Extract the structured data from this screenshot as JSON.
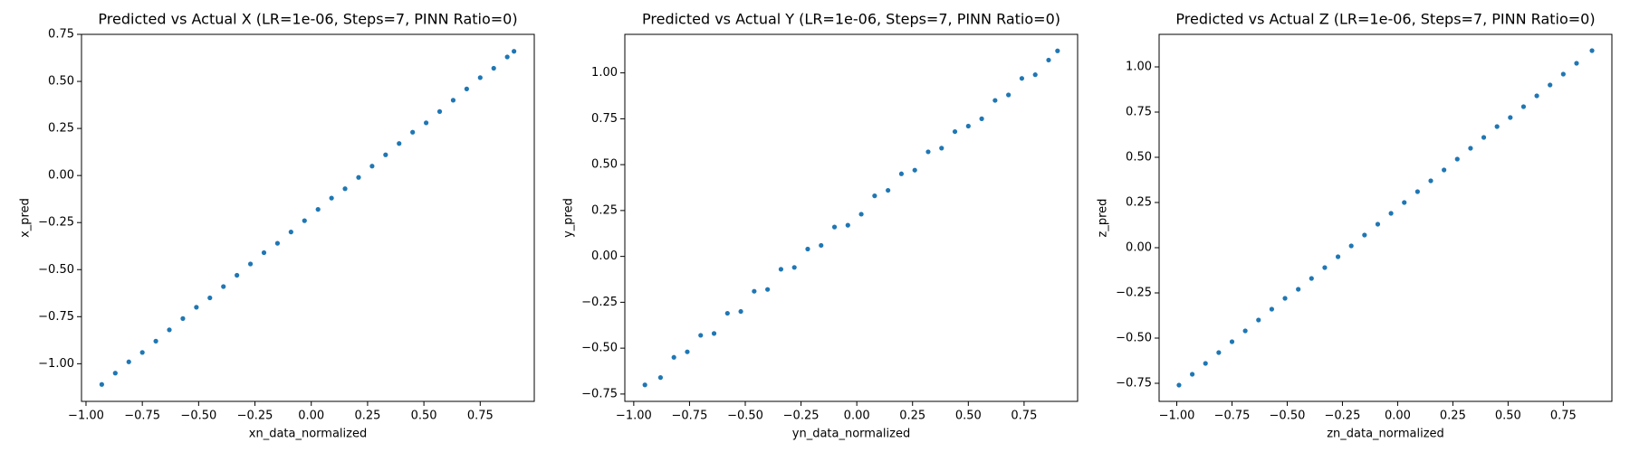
{
  "chart_data": [
    {
      "type": "scatter",
      "title": "Predicted vs Actual X (LR=1e-06, Steps=7, PINN Ratio=0)",
      "x_label": "xn_data_normalized",
      "y_label": "x_pred",
      "color": "#1f77b4",
      "x": [
        -0.93,
        -0.87,
        -0.81,
        -0.75,
        -0.69,
        -0.63,
        -0.57,
        -0.51,
        -0.45,
        -0.39,
        -0.33,
        -0.27,
        -0.21,
        -0.15,
        -0.09,
        -0.03,
        0.03,
        0.09,
        0.15,
        0.21,
        0.27,
        0.33,
        0.39,
        0.45,
        0.51,
        0.57,
        0.63,
        0.69,
        0.75,
        0.81,
        0.87,
        0.9
      ],
      "y": [
        -1.11,
        -1.05,
        -0.99,
        -0.94,
        -0.88,
        -0.82,
        -0.76,
        -0.7,
        -0.65,
        -0.59,
        -0.53,
        -0.47,
        -0.41,
        -0.36,
        -0.3,
        -0.24,
        -0.18,
        -0.12,
        -0.07,
        -0.01,
        0.05,
        0.11,
        0.17,
        0.23,
        0.28,
        0.34,
        0.4,
        0.46,
        0.52,
        0.57,
        0.63,
        0.66
      ],
      "xlim": [
        -1.02,
        0.99
      ],
      "ylim": [
        -1.2,
        0.75
      ],
      "xticks": [
        {
          "value": -1,
          "label": "−1.00"
        },
        {
          "value": -0.75,
          "label": "−0.75"
        },
        {
          "value": -0.5,
          "label": "−0.50"
        },
        {
          "value": -0.25,
          "label": "−0.25"
        },
        {
          "value": 0,
          "label": "0.00"
        },
        0.25,
        {
          "value": 0.5,
          "label": "0.50"
        },
        0.75
      ],
      "yticks": [
        {
          "value": -1,
          "label": "−1.00"
        },
        {
          "value": -0.75,
          "label": "−0.75"
        },
        {
          "value": -0.5,
          "label": "−0.50"
        },
        {
          "value": -0.25,
          "label": "−0.25"
        },
        {
          "value": 0,
          "label": "0.00"
        },
        0.25,
        {
          "value": 0.5,
          "label": "0.50"
        },
        0.75
      ]
    },
    {
      "type": "scatter",
      "title": "Predicted vs Actual Y (LR=1e-06, Steps=7, PINN Ratio=0)",
      "x_label": "yn_data_normalized",
      "y_label": "y_pred",
      "color": "#1f77b4",
      "x": [
        -0.95,
        -0.88,
        -0.82,
        -0.76,
        -0.7,
        -0.64,
        -0.58,
        -0.52,
        -0.46,
        -0.4,
        -0.34,
        -0.28,
        -0.22,
        -0.16,
        -0.1,
        -0.04,
        0.02,
        0.08,
        0.14,
        0.2,
        0.26,
        0.32,
        0.38,
        0.44,
        0.5,
        0.56,
        0.62,
        0.68,
        0.74,
        0.8,
        0.86,
        0.9
      ],
      "y": [
        -0.7,
        -0.66,
        -0.55,
        -0.52,
        -0.43,
        -0.42,
        -0.31,
        -0.3,
        -0.19,
        -0.18,
        -0.07,
        -0.06,
        0.04,
        0.06,
        0.16,
        0.17,
        0.23,
        0.33,
        0.36,
        0.45,
        0.47,
        0.57,
        0.59,
        0.68,
        0.71,
        0.75,
        0.85,
        0.88,
        0.97,
        0.99,
        1.07,
        1.12
      ],
      "xlim": [
        -1.04,
        0.99
      ],
      "ylim": [
        -0.79,
        1.21
      ],
      "xticks": [
        {
          "value": -1,
          "label": "−1.00"
        },
        {
          "value": -0.75,
          "label": "−0.75"
        },
        {
          "value": -0.5,
          "label": "−0.50"
        },
        {
          "value": -0.25,
          "label": "−0.25"
        },
        {
          "value": 0,
          "label": "0.00"
        },
        0.25,
        {
          "value": 0.5,
          "label": "0.50"
        },
        0.75
      ],
      "yticks": [
        {
          "value": -0.75,
          "label": "−0.75"
        },
        {
          "value": -0.5,
          "label": "−0.50"
        },
        {
          "value": -0.25,
          "label": "−0.25"
        },
        {
          "value": 0,
          "label": "0.00"
        },
        0.25,
        {
          "value": 0.5,
          "label": "0.50"
        },
        0.75,
        {
          "value": 1,
          "label": "1.00"
        }
      ]
    },
    {
      "type": "scatter",
      "title": "Predicted vs Actual Z (LR=1e-06, Steps=7, PINN Ratio=0)",
      "x_label": "zn_data_normalized",
      "y_label": "z_pred",
      "color": "#1f77b4",
      "x": [
        -0.99,
        -0.93,
        -0.87,
        -0.81,
        -0.75,
        -0.69,
        -0.63,
        -0.57,
        -0.51,
        -0.45,
        -0.39,
        -0.33,
        -0.27,
        -0.21,
        -0.15,
        -0.09,
        -0.03,
        0.03,
        0.09,
        0.15,
        0.21,
        0.27,
        0.33,
        0.39,
        0.45,
        0.51,
        0.57,
        0.63,
        0.69,
        0.75,
        0.81,
        0.88
      ],
      "y": [
        -0.76,
        -0.7,
        -0.64,
        -0.58,
        -0.52,
        -0.46,
        -0.4,
        -0.34,
        -0.28,
        -0.23,
        -0.17,
        -0.11,
        -0.05,
        0.01,
        0.07,
        0.13,
        0.19,
        0.25,
        0.31,
        0.37,
        0.43,
        0.49,
        0.55,
        0.61,
        0.67,
        0.72,
        0.78,
        0.84,
        0.9,
        0.96,
        1.02,
        1.09
      ],
      "xlim": [
        -1.08,
        0.97
      ],
      "ylim": [
        -0.85,
        1.18
      ],
      "xticks": [
        {
          "value": -1,
          "label": "−1.00"
        },
        {
          "value": -0.75,
          "label": "−0.75"
        },
        {
          "value": -0.5,
          "label": "−0.50"
        },
        {
          "value": -0.25,
          "label": "−0.25"
        },
        {
          "value": 0,
          "label": "0.00"
        },
        0.25,
        {
          "value": 0.5,
          "label": "0.50"
        },
        0.75
      ],
      "yticks": [
        {
          "value": -0.75,
          "label": "−0.75"
        },
        {
          "value": -0.5,
          "label": "−0.50"
        },
        {
          "value": -0.25,
          "label": "−0.25"
        },
        {
          "value": 0,
          "label": "0.00"
        },
        0.25,
        {
          "value": 0.5,
          "label": "0.50"
        },
        0.75,
        {
          "value": 1,
          "label": "1.00"
        }
      ]
    }
  ]
}
